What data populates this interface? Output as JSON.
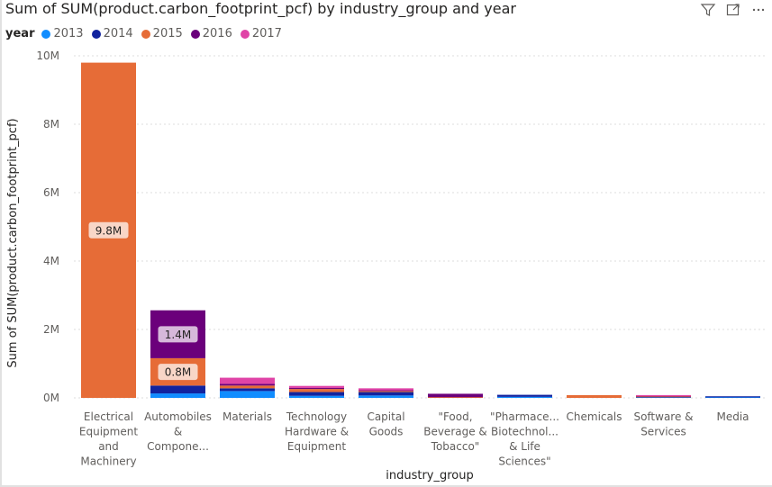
{
  "header": {
    "title": "Sum of SUM(product.carbon_footprint_pcf) by industry_group and year",
    "filter_icon": "filter-icon",
    "focus_icon": "focus-mode-icon",
    "more_icon": "more-options-icon"
  },
  "legend": {
    "title": "year",
    "items": [
      {
        "label": "2013",
        "color": "#118DFF"
      },
      {
        "label": "2014",
        "color": "#12239E"
      },
      {
        "label": "2015",
        "color": "#E66C37"
      },
      {
        "label": "2016",
        "color": "#6B007B"
      },
      {
        "label": "2017",
        "color": "#E044A7"
      }
    ]
  },
  "chart_data": {
    "type": "bar",
    "stacked": true,
    "title": "Sum of SUM(product.carbon_footprint_pcf) by industry_group and year",
    "xlabel": "industry_group",
    "ylabel": "Sum of SUM(product.carbon_footprint_pcf)",
    "ylim": [
      0,
      10000000
    ],
    "yticks": [
      0,
      2000000,
      4000000,
      6000000,
      8000000,
      10000000
    ],
    "ytick_labels": [
      "0M",
      "2M",
      "4M",
      "6M",
      "8M",
      "10M"
    ],
    "grid": true,
    "legend_position": "top-left",
    "categories": [
      [
        "Electrical",
        "Equipment",
        "and",
        "Machinery"
      ],
      [
        "Automobiles",
        "&",
        "Compone..."
      ],
      [
        "Materials"
      ],
      [
        "Technology",
        "Hardware &",
        "Equipment"
      ],
      [
        "Capital",
        "Goods"
      ],
      [
        "\"Food,",
        "Beverage &",
        "Tobacco\""
      ],
      [
        "\"Pharmace...",
        "Biotechnol...",
        "& Life",
        "Sciences\""
      ],
      [
        "Chemicals"
      ],
      [
        "Software &",
        "Services"
      ],
      [
        "Media"
      ]
    ],
    "series": [
      {
        "name": "2013",
        "color": "#118DFF",
        "values": [
          0,
          130000,
          200000,
          60000,
          70000,
          0,
          30000,
          0,
          10000,
          15000
        ]
      },
      {
        "name": "2014",
        "color": "#12239E",
        "values": [
          0,
          230000,
          80000,
          110000,
          100000,
          0,
          60000,
          0,
          10000,
          10000
        ]
      },
      {
        "name": "2015",
        "color": "#E66C37",
        "values": [
          9800000,
          800000,
          80000,
          90000,
          30000,
          20000,
          0,
          80000,
          20000,
          0
        ]
      },
      {
        "name": "2016",
        "color": "#6B007B",
        "values": [
          0,
          1400000,
          50000,
          30000,
          20000,
          100000,
          0,
          0,
          10000,
          0
        ]
      },
      {
        "name": "2017",
        "color": "#E044A7",
        "values": [
          0,
          0,
          180000,
          60000,
          60000,
          0,
          0,
          0,
          10000,
          0
        ]
      }
    ],
    "data_labels": [
      {
        "category_index": 0,
        "series": "2015",
        "text": "9.8M"
      },
      {
        "category_index": 1,
        "series": "2016",
        "text": "1.4M"
      },
      {
        "category_index": 1,
        "series": "2015",
        "text": "0.8M"
      }
    ]
  }
}
